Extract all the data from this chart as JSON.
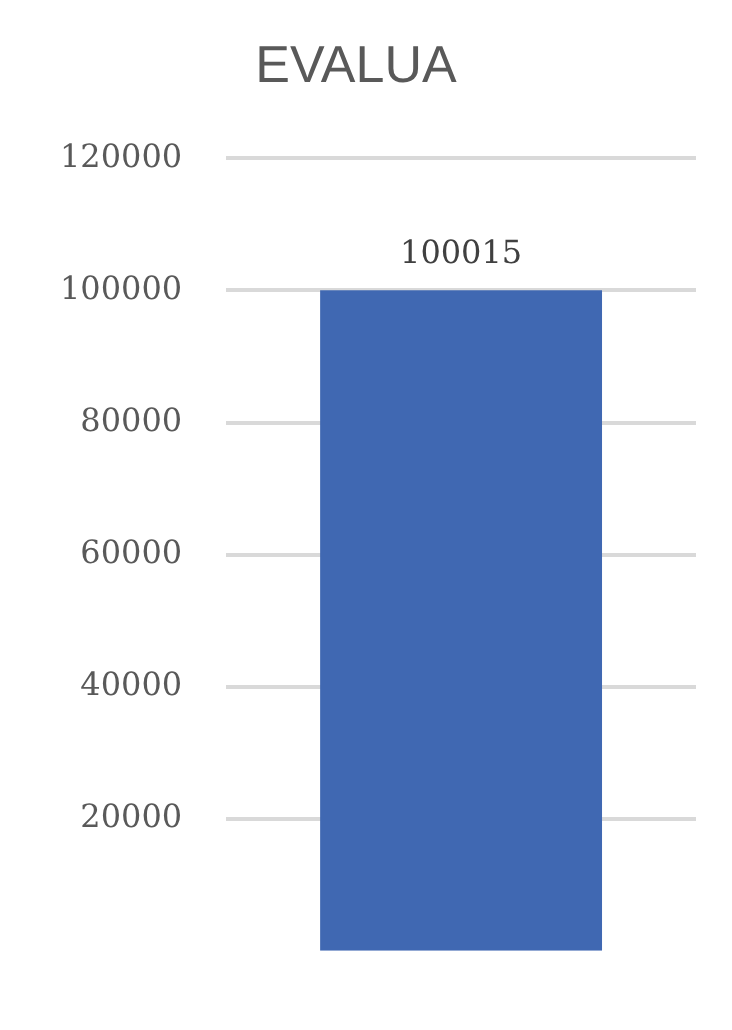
{
  "chart_data": {
    "type": "bar",
    "title": "EVALUA",
    "categories": [
      null
    ],
    "values": [
      100015
    ],
    "data_labels": true,
    "color": "#4068b2",
    "ylim": [
      0,
      120000
    ],
    "yticks": [
      20000,
      40000,
      60000,
      80000,
      100000,
      120000
    ],
    "grid": "y",
    "legend": false
  }
}
